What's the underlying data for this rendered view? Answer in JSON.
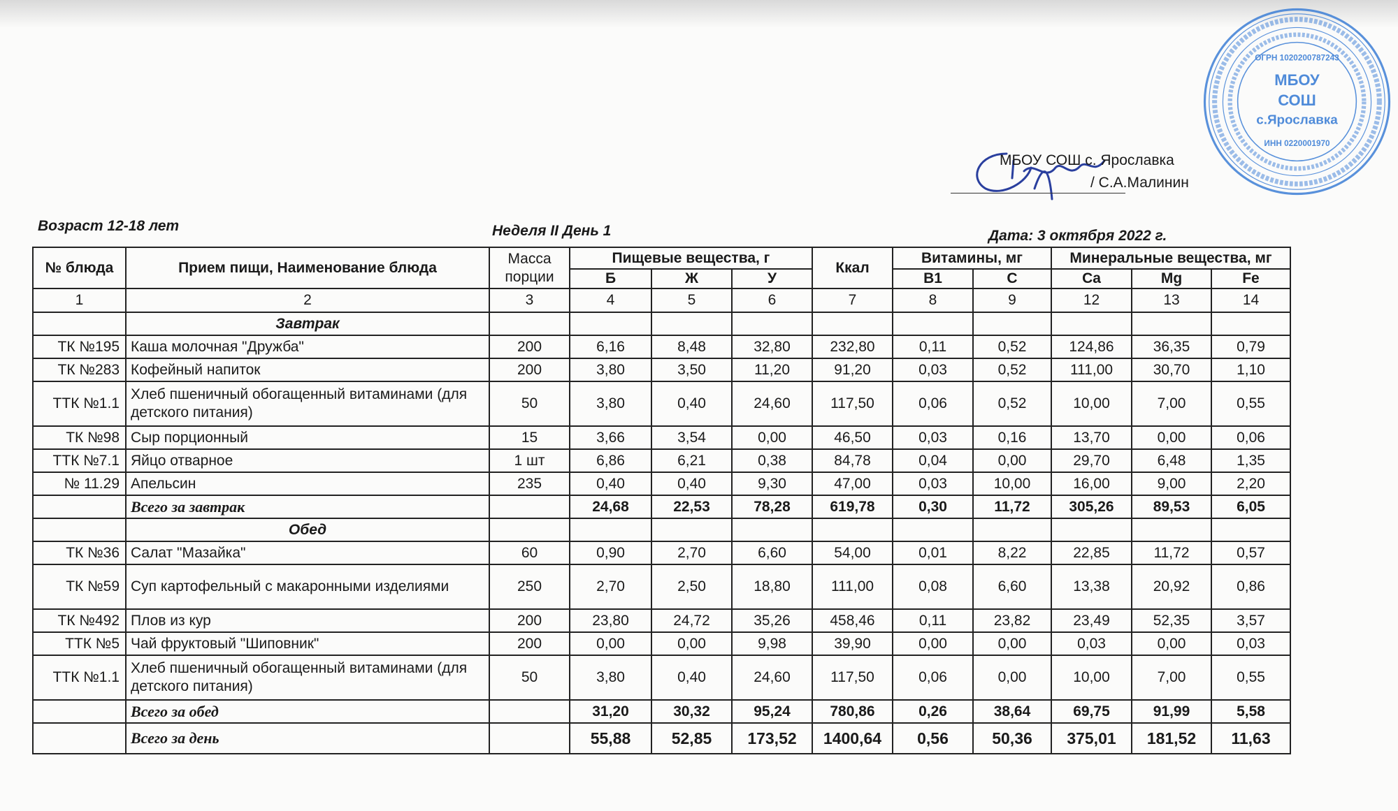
{
  "header": {
    "org": "МБОУ СОШ с. Ярославка",
    "signer": "/ С.А.Малинин",
    "age": "Возраст 12-18 лет",
    "week_day": "Неделя II  День 1",
    "date": "Дата:  3 октября 2022 г."
  },
  "stamp": {
    "color": "#3d7fd6",
    "center": [
      "МБОУ",
      "СОШ",
      "с.Ярославка"
    ],
    "ogrn": "ОГРН 1020200787243",
    "inn": "ИНН 0220001970",
    "ring_outer": "БАШКОРТОСТАН РЕСПУБЛИКАҺЫ ДЫУАН РАЙОНЫ ЯРОСЛАВКА АУЫЛЫ ДӨЙӨМ БЕЛЕМ БИРЕҮ МӘКТӘБЕ",
    "ring_inner": "МУНИЦИПАЛЬНОЕ БЮДЖЕТНОЕ ОБЩЕОБРАЗОВАТЕЛЬНОЕ УЧРЕЖДЕНИЕ СРЕДНЯЯ ОБЩЕОБРАЗОВАТЕЛЬНАЯ ШКОЛА"
  },
  "table": {
    "headers": {
      "code": "№ блюда",
      "name": "Прием пищи, Наименование блюда",
      "mass": "Масса порции",
      "nutrients": "Пищевые вещества, г",
      "kcal": "Ккал",
      "vitamins": "Витамины, мг",
      "minerals": "Минеральные вещества, мг",
      "sub": [
        "Б",
        "Ж",
        "У",
        "В1",
        "С",
        "Ca",
        "Mg",
        "Fe"
      ]
    },
    "col_numbers": [
      "1",
      "2",
      "3",
      "4",
      "5",
      "6",
      "7",
      "8",
      "9",
      "12",
      "13",
      "14"
    ],
    "rows": [
      {
        "type": "section",
        "name": "Завтрак"
      },
      {
        "type": "item",
        "code": "ТК №195",
        "name": "Каша молочная \"Дружба\"",
        "mass": "200",
        "values": [
          "6,16",
          "8,48",
          "32,80",
          "232,80",
          "0,11",
          "0,52",
          "124,86",
          "36,35",
          "0,79"
        ]
      },
      {
        "type": "item",
        "code": "ТК №283",
        "name": "Кофейный напиток",
        "mass": "200",
        "values": [
          "3,80",
          "3,50",
          "11,20",
          "91,20",
          "0,03",
          "0,52",
          "111,00",
          "30,70",
          "1,10"
        ]
      },
      {
        "type": "item",
        "tall": true,
        "code": "ТТК №1.1",
        "name": "Хлеб пшеничный обогащенный витаминами (для детского питания)",
        "mass": "50",
        "values": [
          "3,80",
          "0,40",
          "24,60",
          "117,50",
          "0,06",
          "0,52",
          "10,00",
          "7,00",
          "0,55"
        ]
      },
      {
        "type": "item",
        "code": "ТК №98",
        "name": "Сыр порционный",
        "mass": "15",
        "values": [
          "3,66",
          "3,54",
          "0,00",
          "46,50",
          "0,03",
          "0,16",
          "13,70",
          "0,00",
          "0,06"
        ]
      },
      {
        "type": "item",
        "code": "ТТК №7.1",
        "name": "Яйцо отварное",
        "mass": "1 шт",
        "values": [
          "6,86",
          "6,21",
          "0,38",
          "84,78",
          "0,04",
          "0,00",
          "29,70",
          "6,48",
          "1,35"
        ]
      },
      {
        "type": "item",
        "code": "№ 11.29",
        "name": "Апельсин",
        "mass": "235",
        "values": [
          "0,40",
          "0,40",
          "9,30",
          "47,00",
          "0,03",
          "10,00",
          "16,00",
          "9,00",
          "2,20"
        ]
      },
      {
        "type": "total",
        "name": "Всего за завтрак",
        "values": [
          "24,68",
          "22,53",
          "78,28",
          "619,78",
          "0,30",
          "11,72",
          "305,26",
          "89,53",
          "6,05"
        ]
      },
      {
        "type": "section",
        "name": "Обед"
      },
      {
        "type": "item",
        "code": "ТК №36",
        "name": "Салат \"Мазайка\"",
        "mass": "60",
        "values": [
          "0,90",
          "2,70",
          "6,60",
          "54,00",
          "0,01",
          "8,22",
          "22,85",
          "11,72",
          "0,57"
        ]
      },
      {
        "type": "item",
        "tall": true,
        "code": "ТК №59",
        "name": "Суп картофельный с макаронными изделиями",
        "mass": "250",
        "values": [
          "2,70",
          "2,50",
          "18,80",
          "111,00",
          "0,08",
          "6,60",
          "13,38",
          "20,92",
          "0,86"
        ]
      },
      {
        "type": "item",
        "code": "ТК №492",
        "name": "Плов из кур",
        "mass": "200",
        "values": [
          "23,80",
          "24,72",
          "35,26",
          "458,46",
          "0,11",
          "23,82",
          "23,49",
          "52,35",
          "3,57"
        ]
      },
      {
        "type": "item",
        "code": "ТТК №5",
        "name": "Чай фруктовый \"Шиповник\"",
        "mass": "200",
        "values": [
          "0,00",
          "0,00",
          "9,98",
          "39,90",
          "0,00",
          "0,00",
          "0,03",
          "0,00",
          "0,03"
        ]
      },
      {
        "type": "item",
        "tall": true,
        "code": "ТТК №1.1",
        "name": "Хлеб пшеничный обогащенный витаминами (для детского питания)",
        "mass": "50",
        "values": [
          "3,80",
          "0,40",
          "24,60",
          "117,50",
          "0,06",
          "0,00",
          "10,00",
          "7,00",
          "0,55"
        ]
      },
      {
        "type": "total",
        "name": "Всего за обед",
        "values": [
          "31,20",
          "30,32",
          "95,24",
          "780,86",
          "0,26",
          "38,64",
          "69,75",
          "91,99",
          "5,58"
        ]
      },
      {
        "type": "total",
        "day": true,
        "name": "Всего за день",
        "values": [
          "55,88",
          "52,85",
          "173,52",
          "1400,64",
          "0,56",
          "50,36",
          "375,01",
          "181,52",
          "11,63"
        ]
      }
    ]
  }
}
